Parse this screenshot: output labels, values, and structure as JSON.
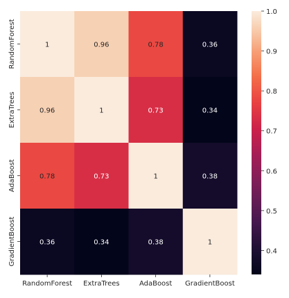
{
  "chart_data": {
    "type": "heatmap",
    "title": "",
    "xlabel": "",
    "ylabel": "",
    "x_categories": [
      "RandomForest",
      "ExtraTrees",
      "AdaBoost",
      "GradientBoost"
    ],
    "y_categories": [
      "RandomForest",
      "ExtraTrees",
      "AdaBoost",
      "GradientBoost"
    ],
    "values": [
      [
        1,
        0.96,
        0.78,
        0.36
      ],
      [
        0.96,
        1,
        0.73,
        0.34
      ],
      [
        0.78,
        0.73,
        1,
        0.38
      ],
      [
        0.36,
        0.34,
        0.38,
        1
      ]
    ],
    "value_labels": [
      [
        "1",
        "0.96",
        "0.78",
        "0.36"
      ],
      [
        "0.96",
        "1",
        "0.73",
        "0.34"
      ],
      [
        "0.78",
        "0.73",
        "1",
        "0.38"
      ],
      [
        "0.36",
        "0.34",
        "0.38",
        "1"
      ]
    ],
    "colorbar": {
      "vmin": 0.34,
      "vmax": 1.0,
      "ticks": [
        0.4,
        0.5,
        0.6,
        0.7,
        0.8,
        0.9,
        1.0
      ],
      "tick_labels": [
        "0.4",
        "0.5",
        "0.6",
        "0.7",
        "0.8",
        "0.9",
        "1.0"
      ],
      "colormap": "rocket"
    },
    "grid": false,
    "legend": "colorbar-right"
  }
}
